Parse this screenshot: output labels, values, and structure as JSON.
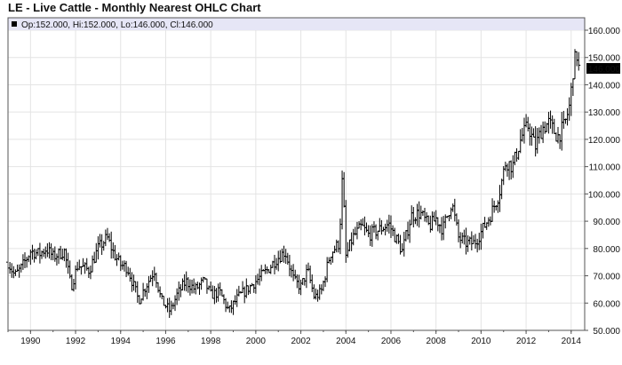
{
  "chart_data": {
    "type": "ohlc",
    "title": "LE - Live Cattle - Monthly Nearest OHLC Chart",
    "ohlc_readout": "Op:152.000, Hi:152.000, Lo:146.000, Cl:146.000",
    "last_price_label": "146.000",
    "xlabel": "",
    "ylabel": "",
    "xlim": [
      1989.0,
      2014.6
    ],
    "ylim": [
      50,
      160
    ],
    "x_ticks": [
      "1990",
      "1992",
      "1994",
      "1996",
      "1998",
      "2000",
      "2002",
      "2004",
      "2006",
      "2008",
      "2010",
      "2012",
      "2014"
    ],
    "y_ticks": [
      "50.000",
      "60.000",
      "70.000",
      "80.000",
      "90.000",
      "100.000",
      "110.000",
      "120.000",
      "130.000",
      "140.000",
      "150.000",
      "160.000"
    ],
    "grid": true,
    "colors": {
      "bar": "#000000",
      "grid": "#e4e4e4",
      "header_band": "#e6e6f6",
      "axis": "#555555"
    },
    "anchors": [
      {
        "t": 1989.0,
        "c": 75
      },
      {
        "t": 1989.3,
        "c": 70
      },
      {
        "t": 1989.6,
        "c": 73
      },
      {
        "t": 1990.0,
        "c": 79
      },
      {
        "t": 1990.4,
        "c": 78
      },
      {
        "t": 1990.7,
        "c": 80
      },
      {
        "t": 1991.0,
        "c": 77
      },
      {
        "t": 1991.5,
        "c": 79
      },
      {
        "t": 1991.8,
        "c": 66
      },
      {
        "t": 1992.1,
        "c": 74
      },
      {
        "t": 1992.6,
        "c": 72
      },
      {
        "t": 1993.0,
        "c": 80
      },
      {
        "t": 1993.4,
        "c": 84
      },
      {
        "t": 1993.7,
        "c": 78
      },
      {
        "t": 1994.0,
        "c": 74
      },
      {
        "t": 1994.3,
        "c": 73
      },
      {
        "t": 1994.8,
        "c": 61
      },
      {
        "t": 1995.1,
        "c": 66
      },
      {
        "t": 1995.5,
        "c": 72
      },
      {
        "t": 1995.8,
        "c": 61
      },
      {
        "t": 1996.2,
        "c": 57
      },
      {
        "t": 1996.5,
        "c": 63
      },
      {
        "t": 1996.9,
        "c": 68
      },
      {
        "t": 1997.3,
        "c": 65
      },
      {
        "t": 1997.7,
        "c": 68
      },
      {
        "t": 1998.0,
        "c": 63
      },
      {
        "t": 1998.4,
        "c": 64
      },
      {
        "t": 1998.8,
        "c": 57
      },
      {
        "t": 1999.2,
        "c": 62
      },
      {
        "t": 1999.6,
        "c": 65
      },
      {
        "t": 2000.0,
        "c": 68
      },
      {
        "t": 2000.5,
        "c": 72
      },
      {
        "t": 2000.9,
        "c": 76
      },
      {
        "t": 2001.3,
        "c": 79
      },
      {
        "t": 2001.7,
        "c": 68
      },
      {
        "t": 2002.0,
        "c": 66
      },
      {
        "t": 2002.3,
        "c": 72
      },
      {
        "t": 2002.6,
        "c": 62
      },
      {
        "t": 2002.9,
        "c": 64
      },
      {
        "t": 2003.3,
        "c": 78
      },
      {
        "t": 2003.7,
        "c": 82
      },
      {
        "t": 2003.85,
        "c": 107
      },
      {
        "t": 2004.0,
        "c": 77
      },
      {
        "t": 2004.3,
        "c": 84
      },
      {
        "t": 2004.7,
        "c": 88
      },
      {
        "t": 2005.0,
        "c": 85
      },
      {
        "t": 2005.5,
        "c": 87
      },
      {
        "t": 2005.9,
        "c": 89
      },
      {
        "t": 2006.2,
        "c": 84
      },
      {
        "t": 2006.5,
        "c": 79
      },
      {
        "t": 2006.9,
        "c": 92
      },
      {
        "t": 2007.3,
        "c": 93
      },
      {
        "t": 2007.7,
        "c": 88
      },
      {
        "t": 2008.0,
        "c": 91
      },
      {
        "t": 2008.3,
        "c": 87
      },
      {
        "t": 2008.7,
        "c": 97
      },
      {
        "t": 2009.0,
        "c": 84
      },
      {
        "t": 2009.3,
        "c": 82
      },
      {
        "t": 2009.7,
        "c": 82
      },
      {
        "t": 2010.0,
        "c": 86
      },
      {
        "t": 2010.4,
        "c": 92
      },
      {
        "t": 2010.8,
        "c": 100
      },
      {
        "t": 2011.1,
        "c": 112
      },
      {
        "t": 2011.4,
        "c": 110
      },
      {
        "t": 2011.8,
        "c": 121
      },
      {
        "t": 2012.1,
        "c": 125
      },
      {
        "t": 2012.4,
        "c": 117
      },
      {
        "t": 2012.7,
        "c": 124
      },
      {
        "t": 2013.0,
        "c": 126
      },
      {
        "t": 2013.4,
        "c": 121
      },
      {
        "t": 2013.7,
        "c": 125
      },
      {
        "t": 2013.95,
        "c": 133
      },
      {
        "t": 2014.1,
        "c": 147
      },
      {
        "t": 2014.25,
        "c": 151
      },
      {
        "t": 2014.33,
        "c": 146
      }
    ]
  }
}
